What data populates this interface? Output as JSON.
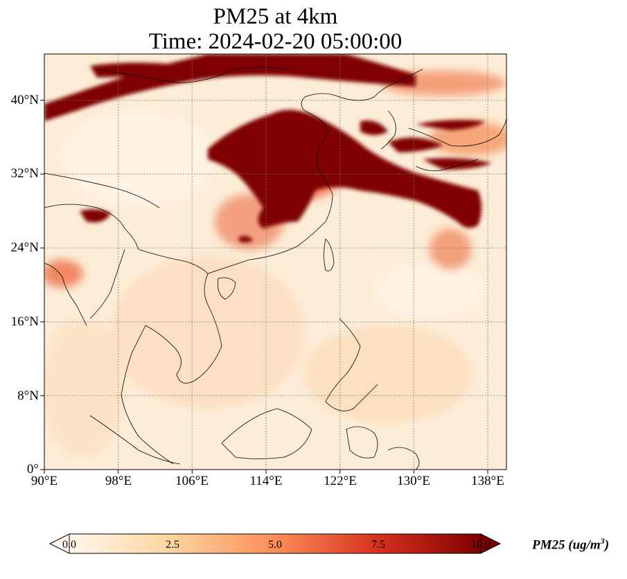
{
  "title": {
    "line1": "PM25 at 4km",
    "line2": "Time: 2024-02-20 05:00:00"
  },
  "map": {
    "projection": "PlateCarree",
    "lon_range": [
      90,
      139.5
    ],
    "lat_range": [
      0,
      45
    ],
    "lat_ticks": [
      "40°N",
      "32°N",
      "24°N",
      "16°N",
      "8°N",
      "0°"
    ],
    "lon_ticks": [
      "90°E",
      "98°E",
      "106°E",
      "114°E",
      "122°E",
      "130°E",
      "138°E"
    ],
    "gridlines": "dotted",
    "colormap": "OrRd",
    "colors": {
      "low": "#fff7ec",
      "mid": "#fdbb84",
      "high": "#d7301f",
      "max": "#7f0000"
    }
  },
  "colorbar": {
    "label": "PM25 (ug/m",
    "label_sup": "3",
    "label_close": ")",
    "ticks": [
      "0.0",
      "2.5",
      "5.0",
      "7.5",
      "10.0"
    ],
    "range": [
      0,
      10
    ],
    "extend": "both"
  }
}
